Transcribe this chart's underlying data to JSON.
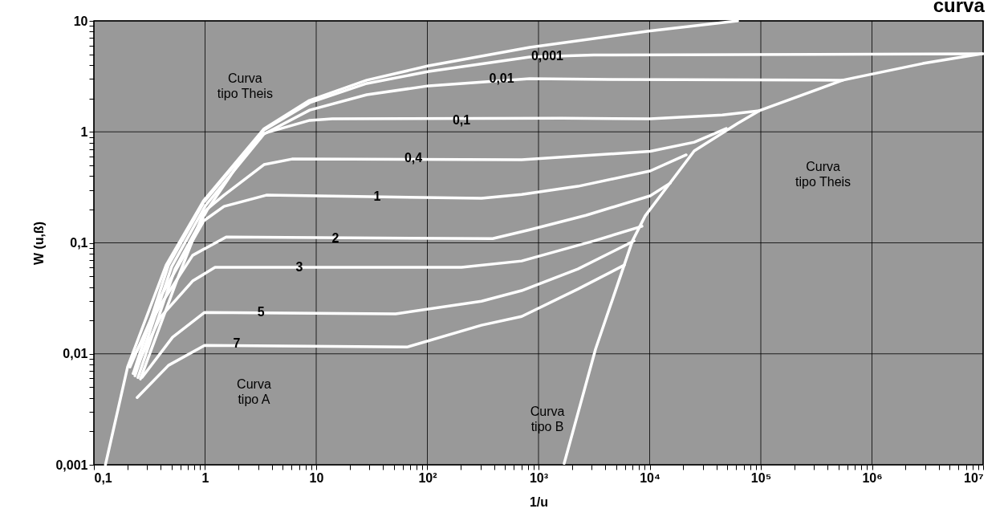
{
  "chart_data": {
    "type": "line",
    "title": "curva",
    "xlabel": "1/u",
    "ylabel": "W (u,ß)",
    "log": "xy",
    "grid": true,
    "legend": false,
    "marker": "none",
    "line_style": "solid",
    "xlim": [
      0.1,
      10000000
    ],
    "ylim": [
      0.001,
      10
    ],
    "xticks": [
      {
        "value": 0.1,
        "label": "0,1"
      },
      {
        "value": 0.2,
        "label": null
      },
      {
        "value": 0.3,
        "label": null
      },
      {
        "value": 0.4,
        "label": null
      },
      {
        "value": 0.5,
        "label": null
      },
      {
        "value": 0.6,
        "label": null
      },
      {
        "value": 0.7,
        "label": null
      },
      {
        "value": 0.8,
        "label": null
      },
      {
        "value": 0.9,
        "label": null
      },
      1,
      {
        "value": 2,
        "label": null
      },
      {
        "value": 3,
        "label": null
      },
      {
        "value": 4,
        "label": null
      },
      {
        "value": 5,
        "label": null
      },
      {
        "value": 6,
        "label": null
      },
      {
        "value": 7,
        "label": null
      },
      {
        "value": 8,
        "label": null
      },
      {
        "value": 9,
        "label": null
      },
      10,
      {
        "value": 20,
        "label": null
      },
      {
        "value": 30,
        "label": null
      },
      {
        "value": 40,
        "label": null
      },
      {
        "value": 50,
        "label": null
      },
      {
        "value": 60,
        "label": null
      },
      {
        "value": 70,
        "label": null
      },
      {
        "value": 80,
        "label": null
      },
      {
        "value": 90,
        "label": null
      },
      {
        "value": 100,
        "label": "10²"
      },
      {
        "value": 200,
        "label": null
      },
      {
        "value": 300,
        "label": null
      },
      {
        "value": 400,
        "label": null
      },
      {
        "value": 500,
        "label": null
      },
      {
        "value": 600,
        "label": null
      },
      {
        "value": 700,
        "label": null
      },
      {
        "value": 800,
        "label": null
      },
      {
        "value": 900,
        "label": null
      },
      {
        "value": 1000,
        "label": "10³"
      },
      {
        "value": 2000,
        "label": null
      },
      {
        "value": 3000,
        "label": null
      },
      {
        "value": 4000,
        "label": null
      },
      {
        "value": 5000,
        "label": null
      },
      {
        "value": 6000,
        "label": null
      },
      {
        "value": 7000,
        "label": null
      },
      {
        "value": 8000,
        "label": null
      },
      {
        "value": 9000,
        "label": null
      },
      {
        "value": 10000,
        "label": "10⁴"
      },
      {
        "value": 20000,
        "label": null
      },
      {
        "value": 30000,
        "label": null
      },
      {
        "value": 40000,
        "label": null
      },
      {
        "value": 50000,
        "label": null
      },
      {
        "value": 60000,
        "label": null
      },
      {
        "value": 70000,
        "label": null
      },
      {
        "value": 80000,
        "label": null
      },
      {
        "value": 90000,
        "label": null
      },
      {
        "value": 100000,
        "label": "10⁵"
      },
      {
        "value": 200000,
        "label": null
      },
      {
        "value": 300000,
        "label": null
      },
      {
        "value": 400000,
        "label": null
      },
      {
        "value": 500000,
        "label": null
      },
      {
        "value": 600000,
        "label": null
      },
      {
        "value": 700000,
        "label": null
      },
      {
        "value": 800000,
        "label": null
      },
      {
        "value": 900000,
        "label": null
      },
      {
        "value": 1000000,
        "label": "10⁶"
      },
      {
        "value": 2000000,
        "label": null
      },
      {
        "value": 3000000,
        "label": null
      },
      {
        "value": 4000000,
        "label": null
      },
      {
        "value": 5000000,
        "label": null
      },
      {
        "value": 6000000,
        "label": null
      },
      {
        "value": 7000000,
        "label": null
      },
      {
        "value": 8000000,
        "label": null
      },
      {
        "value": 9000000,
        "label": null
      },
      {
        "value": 10000000,
        "label": "10⁷"
      }
    ],
    "yticks": [
      {
        "value": 0.001,
        "label": "0,001"
      },
      {
        "value": 0.002,
        "label": null
      },
      {
        "value": 0.003,
        "label": null
      },
      {
        "value": 0.004,
        "label": null
      },
      {
        "value": 0.005,
        "label": null
      },
      {
        "value": 0.006,
        "label": null
      },
      {
        "value": 0.007,
        "label": null
      },
      {
        "value": 0.008,
        "label": null
      },
      {
        "value": 0.009,
        "label": null
      },
      {
        "value": 0.01,
        "label": "0,01"
      },
      {
        "value": 0.02,
        "label": null
      },
      {
        "value": 0.03,
        "label": null
      },
      {
        "value": 0.04,
        "label": null
      },
      {
        "value": 0.05,
        "label": null
      },
      {
        "value": 0.06,
        "label": null
      },
      {
        "value": 0.07,
        "label": null
      },
      {
        "value": 0.08,
        "label": null
      },
      {
        "value": 0.09,
        "label": null
      },
      {
        "value": 0.1,
        "label": "0,1"
      },
      {
        "value": 0.2,
        "label": null
      },
      {
        "value": 0.3,
        "label": null
      },
      {
        "value": 0.4,
        "label": null
      },
      {
        "value": 0.5,
        "label": null
      },
      {
        "value": 0.6,
        "label": null
      },
      {
        "value": 0.7,
        "label": null
      },
      {
        "value": 0.8,
        "label": null
      },
      {
        "value": 0.9,
        "label": null
      },
      1,
      {
        "value": 2,
        "label": null
      },
      {
        "value": 3,
        "label": null
      },
      {
        "value": 4,
        "label": null
      },
      {
        "value": 5,
        "label": null
      },
      {
        "value": 6,
        "label": null
      },
      {
        "value": 7,
        "label": null
      },
      {
        "value": 8,
        "label": null
      },
      {
        "value": 9,
        "label": null
      },
      10
    ],
    "series": [
      {
        "color": "#ffffff",
        "x": [
          0.127,
          0.201,
          0.447,
          0.969,
          3.37,
          8.7,
          28.5,
          102,
          834,
          10090,
          61800
        ],
        "values": [
          0.001,
          0.0076,
          0.063,
          0.239,
          1.06,
          1.92,
          2.92,
          3.93,
          5.77,
          8.13,
          10
        ]
      },
      {
        "color": "#ffffff",
        "x": [
          1702,
          3258,
          6998,
          9120,
          25170,
          61800,
          96800,
          545000,
          2870000,
          9700000
        ],
        "values": [
          0.00103,
          0.011,
          0.104,
          0.175,
          0.673,
          1.19,
          1.55,
          2.92,
          4.13,
          5.05
        ]
      },
      {
        "color": "#ffffff",
        "x": [
          0.226,
          0.469,
          0.975,
          3.39,
          8.75,
          28.5,
          103,
          833,
          3150,
          10000000
        ],
        "values": [
          0.00665,
          0.0631,
          0.232,
          1.04,
          1.83,
          2.73,
          3.5,
          4.72,
          4.92,
          5.05
        ]
      },
      {
        "color": "#ffffff",
        "x": [
          0.234,
          0.501,
          1.01,
          3.39,
          8.75,
          28.5,
          103,
          833,
          4400,
          545000
        ],
        "values": [
          0.00634,
          0.061,
          0.217,
          0.955,
          1.57,
          2.16,
          2.6,
          3.01,
          2.97,
          2.92
        ]
      },
      {
        "color": "#ffffff",
        "x": [
          0.249,
          0.536,
          1.04,
          2.09,
          3.39,
          8.75,
          13.9,
          1620,
          10100,
          45000,
          96800
        ],
        "values": [
          0.00612,
          0.0581,
          0.196,
          0.551,
          0.97,
          1.27,
          1.31,
          1.33,
          1.31,
          1.42,
          1.55
        ]
      },
      {
        "color": "#ffffff",
        "x": [
          0.262,
          0.555,
          0.975,
          1.48,
          3.39,
          6.07,
          705,
          10100,
          25200,
          48900
        ],
        "values": [
          0.00593,
          0.0453,
          0.19,
          0.269,
          0.507,
          0.569,
          0.56,
          0.667,
          0.807,
          1.07
        ]
      },
      {
        "color": "#ffffff",
        "x": [
          0.211,
          0.397,
          0.975,
          1.48,
          3.56,
          307,
          705,
          2260,
          10100,
          21300
        ],
        "values": [
          0.0076,
          0.0324,
          0.158,
          0.213,
          0.269,
          0.252,
          0.273,
          0.323,
          0.444,
          0.62
        ]
      },
      {
        "color": "#ffffff",
        "x": [
          0.208,
          0.397,
          0.773,
          1.55,
          387,
          833,
          2670,
          10100,
          15300
        ],
        "values": [
          0.00787,
          0.0275,
          0.0771,
          0.113,
          0.109,
          0.131,
          0.177,
          0.265,
          0.345
        ]
      },
      {
        "color": "#ffffff",
        "x": [
          0.226,
          0.397,
          0.773,
          1.23,
          203,
          705,
          3150,
          8530
        ],
        "values": [
          0.00665,
          0.0214,
          0.0453,
          0.0601,
          0.0601,
          0.0686,
          0.104,
          0.141
        ]
      },
      {
        "color": "#ffffff",
        "x": [
          0.271,
          0.51,
          0.991,
          51.9,
          307,
          705,
          2260,
          7230
        ],
        "values": [
          0.00612,
          0.0141,
          0.0236,
          0.0229,
          0.0298,
          0.0371,
          0.0581,
          0.104
        ]
      },
      {
        "color": "#ffffff",
        "x": [
          0.245,
          0.469,
          0.991,
          65.5,
          307,
          705,
          2260,
          5930
        ],
        "values": [
          0.00404,
          0.00787,
          0.0119,
          0.0115,
          0.0181,
          0.0217,
          0.0383,
          0.0631
        ]
      }
    ],
    "annotations": [
      {
        "text": "0,001",
        "x": 1200,
        "y": 4.81
      },
      {
        "text": "0,01",
        "x": 466,
        "y": 3.01
      },
      {
        "text": "0,1",
        "x": 203,
        "y": 1.27
      },
      {
        "text": "0,4",
        "x": 74.8,
        "y": 0.58
      },
      {
        "text": "1",
        "x": 35.4,
        "y": 0.26
      },
      {
        "text": "2",
        "x": 14.9,
        "y": 0.109
      },
      {
        "text": "3",
        "x": 7.05,
        "y": 0.06
      },
      {
        "text": "5",
        "x": 3.18,
        "y": 0.0236
      },
      {
        "text": "7",
        "x": 1.93,
        "y": 0.0123
      },
      "Curva\ntipo Theis",
      "Curva\ntipo Theis",
      "Curva\ntipo A",
      "Curva\ntipo B"
    ]
  }
}
